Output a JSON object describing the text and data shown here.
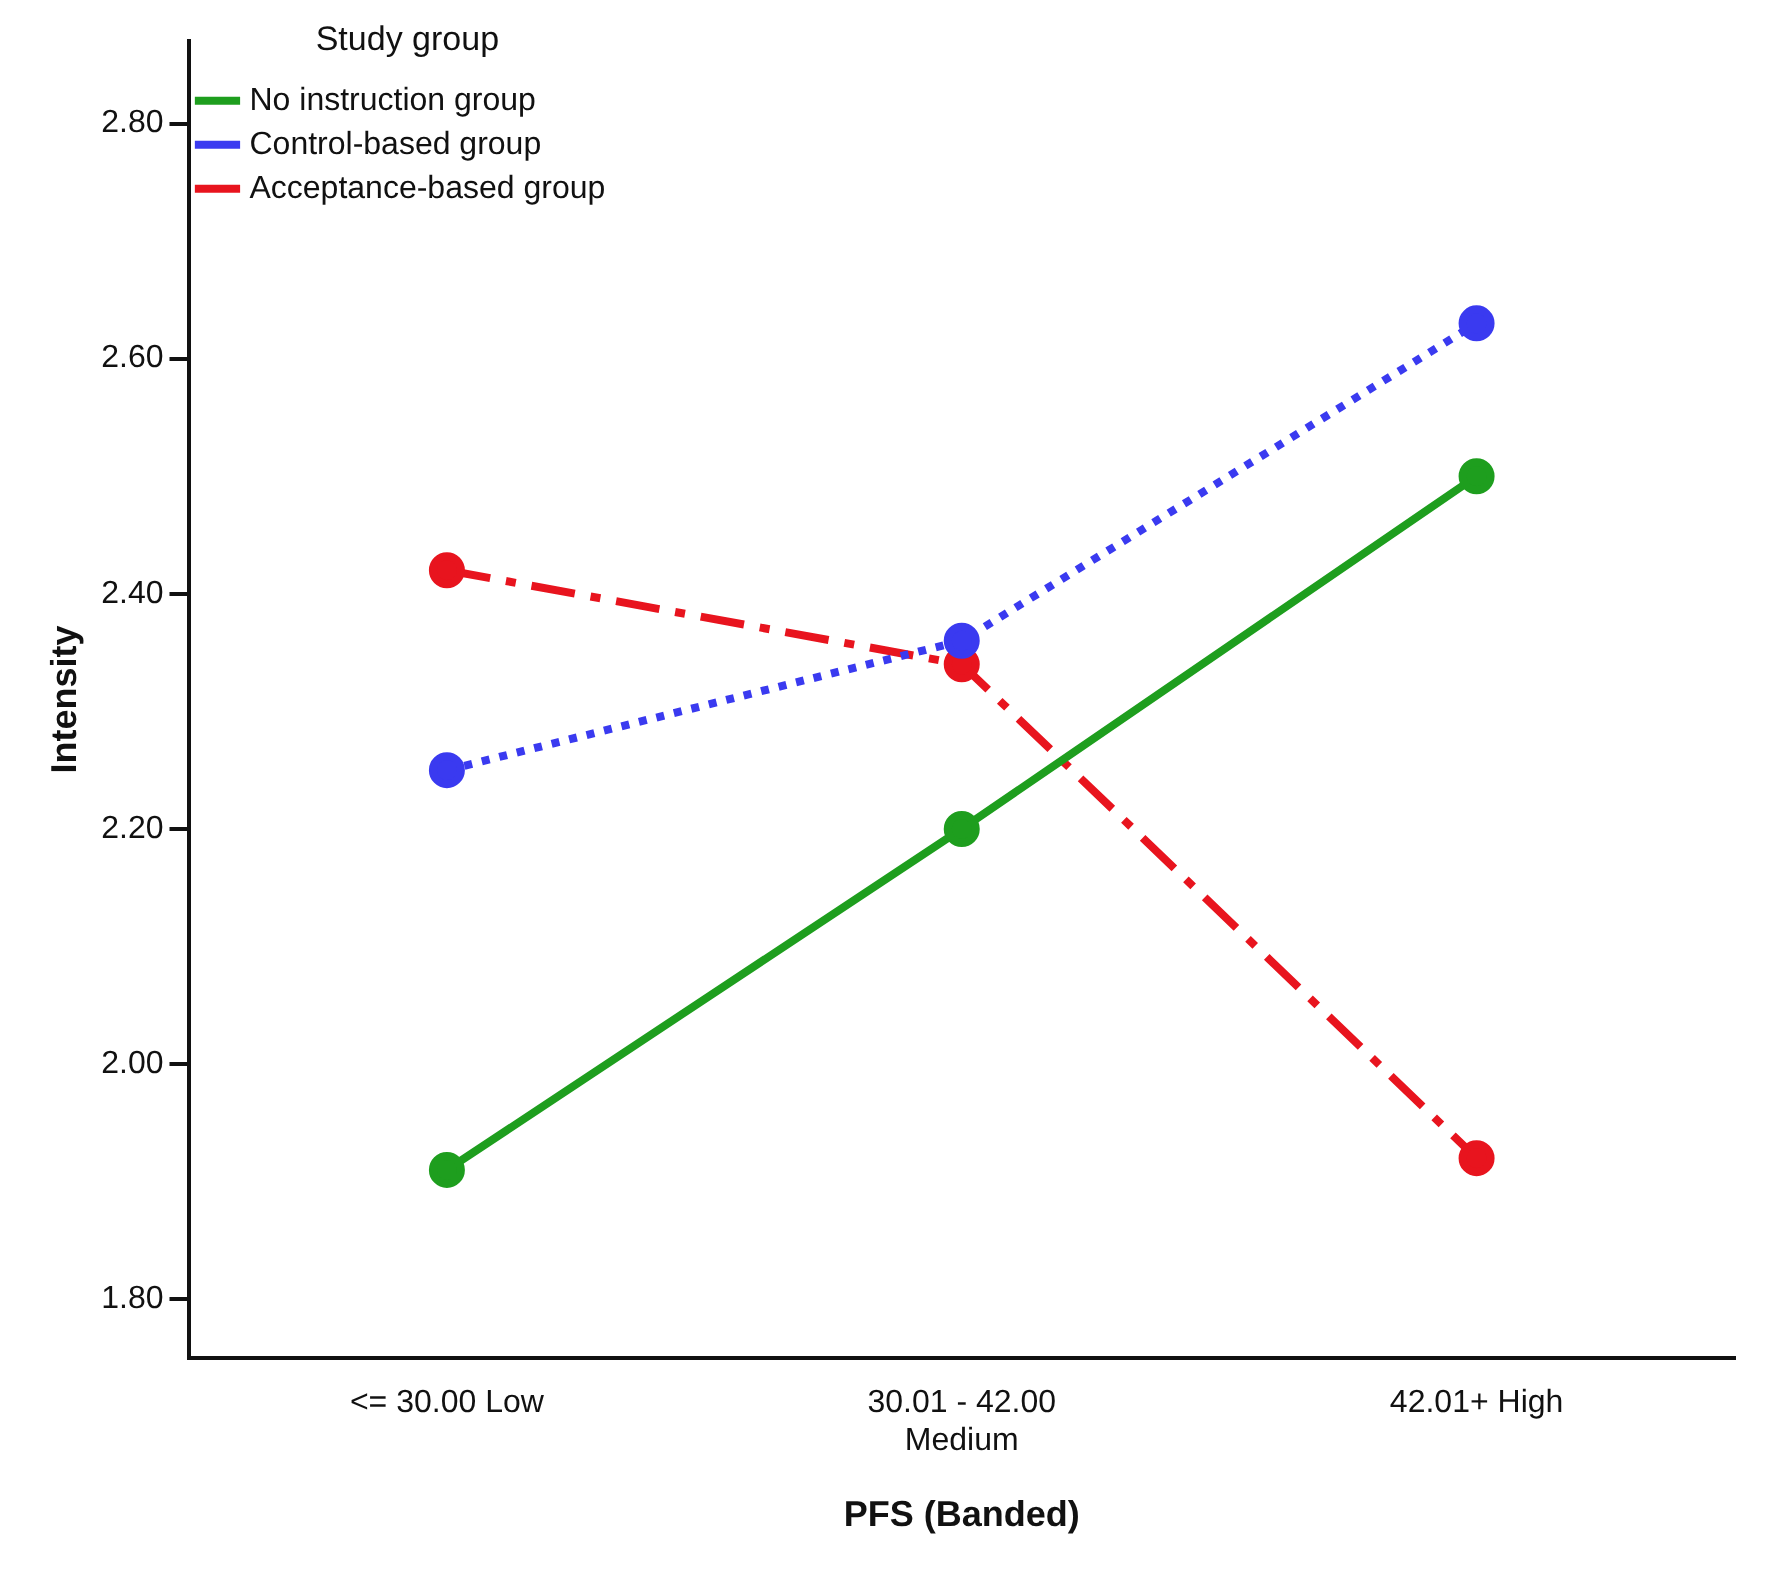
{
  "chart_data": {
    "type": "line",
    "xlabel": "PFS (Banded)",
    "ylabel": "Intensity",
    "legend_title": "Study group",
    "legend": "top left",
    "marker": "circle",
    "grid": false,
    "categories": [
      "<= 30.00 Low",
      "30.01 - 42.00 Medium",
      "42.01+ High"
    ],
    "ylim": [
      1.75,
      2.87
    ],
    "yticks": [
      {
        "value": 1.8,
        "label": "1.80"
      },
      {
        "value": 2.0,
        "label": "2.00"
      },
      {
        "value": 2.2,
        "label": "2.20"
      },
      {
        "value": 2.4,
        "label": "2.40"
      },
      {
        "value": 2.6,
        "label": "2.60"
      },
      {
        "value": 2.8,
        "label": "2.80"
      }
    ],
    "series": [
      {
        "name": "No instruction group",
        "color": "#1e9e1e",
        "line_style": "solid",
        "values": [
          1.91,
          2.2,
          2.5
        ]
      },
      {
        "name": "Control-based group",
        "color": "#3a3af0",
        "line_style": "dotted",
        "values": [
          2.25,
          2.36,
          2.63
        ]
      },
      {
        "name": "Acceptance-based group",
        "color": "#e8141e",
        "line_style": "dashdot",
        "values": [
          2.42,
          2.34,
          1.92
        ]
      }
    ]
  }
}
